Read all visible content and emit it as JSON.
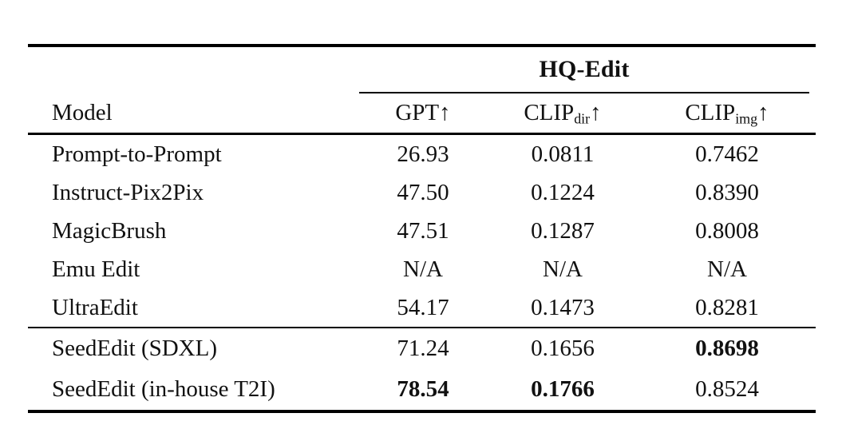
{
  "table": {
    "group_header": {
      "title": "HQ-Edit"
    },
    "columns": {
      "model": "Model",
      "gpt": {
        "base": "GPT",
        "sub": "",
        "arrow": "↑"
      },
      "clip_dir": {
        "base": "CLIP",
        "sub": "dir",
        "arrow": "↑"
      },
      "clip_img": {
        "base": "CLIP",
        "sub": "img",
        "arrow": "↑"
      }
    },
    "rows": [
      {
        "model": "Prompt-to-Prompt",
        "gpt": "26.93",
        "clip_dir": "0.0811",
        "clip_img": "0.7462",
        "bold": {
          "gpt": false,
          "clip_dir": false,
          "clip_img": false
        }
      },
      {
        "model": "Instruct-Pix2Pix",
        "gpt": "47.50",
        "clip_dir": "0.1224",
        "clip_img": "0.8390",
        "bold": {
          "gpt": false,
          "clip_dir": false,
          "clip_img": false
        }
      },
      {
        "model": "MagicBrush",
        "gpt": "47.51",
        "clip_dir": "0.1287",
        "clip_img": "0.8008",
        "bold": {
          "gpt": false,
          "clip_dir": false,
          "clip_img": false
        }
      },
      {
        "model": "Emu Edit",
        "gpt": "N/A",
        "clip_dir": "N/A",
        "clip_img": "N/A",
        "bold": {
          "gpt": false,
          "clip_dir": false,
          "clip_img": false
        }
      },
      {
        "model": "UltraEdit",
        "gpt": "54.17",
        "clip_dir": "0.1473",
        "clip_img": "0.8281",
        "bold": {
          "gpt": false,
          "clip_dir": false,
          "clip_img": false
        }
      },
      {
        "model": "SeedEdit (SDXL)",
        "gpt": "71.24",
        "clip_dir": "0.1656",
        "clip_img": "0.8698",
        "bold": {
          "gpt": false,
          "clip_dir": false,
          "clip_img": true
        }
      },
      {
        "model": "SeedEdit (in-house T2I)",
        "gpt": "78.54",
        "clip_dir": "0.1766",
        "clip_img": "0.8524",
        "bold": {
          "gpt": true,
          "clip_dir": true,
          "clip_img": false
        }
      }
    ]
  },
  "colors": {
    "background": "#ffffff",
    "text": "#111111",
    "rule": "#000000"
  }
}
